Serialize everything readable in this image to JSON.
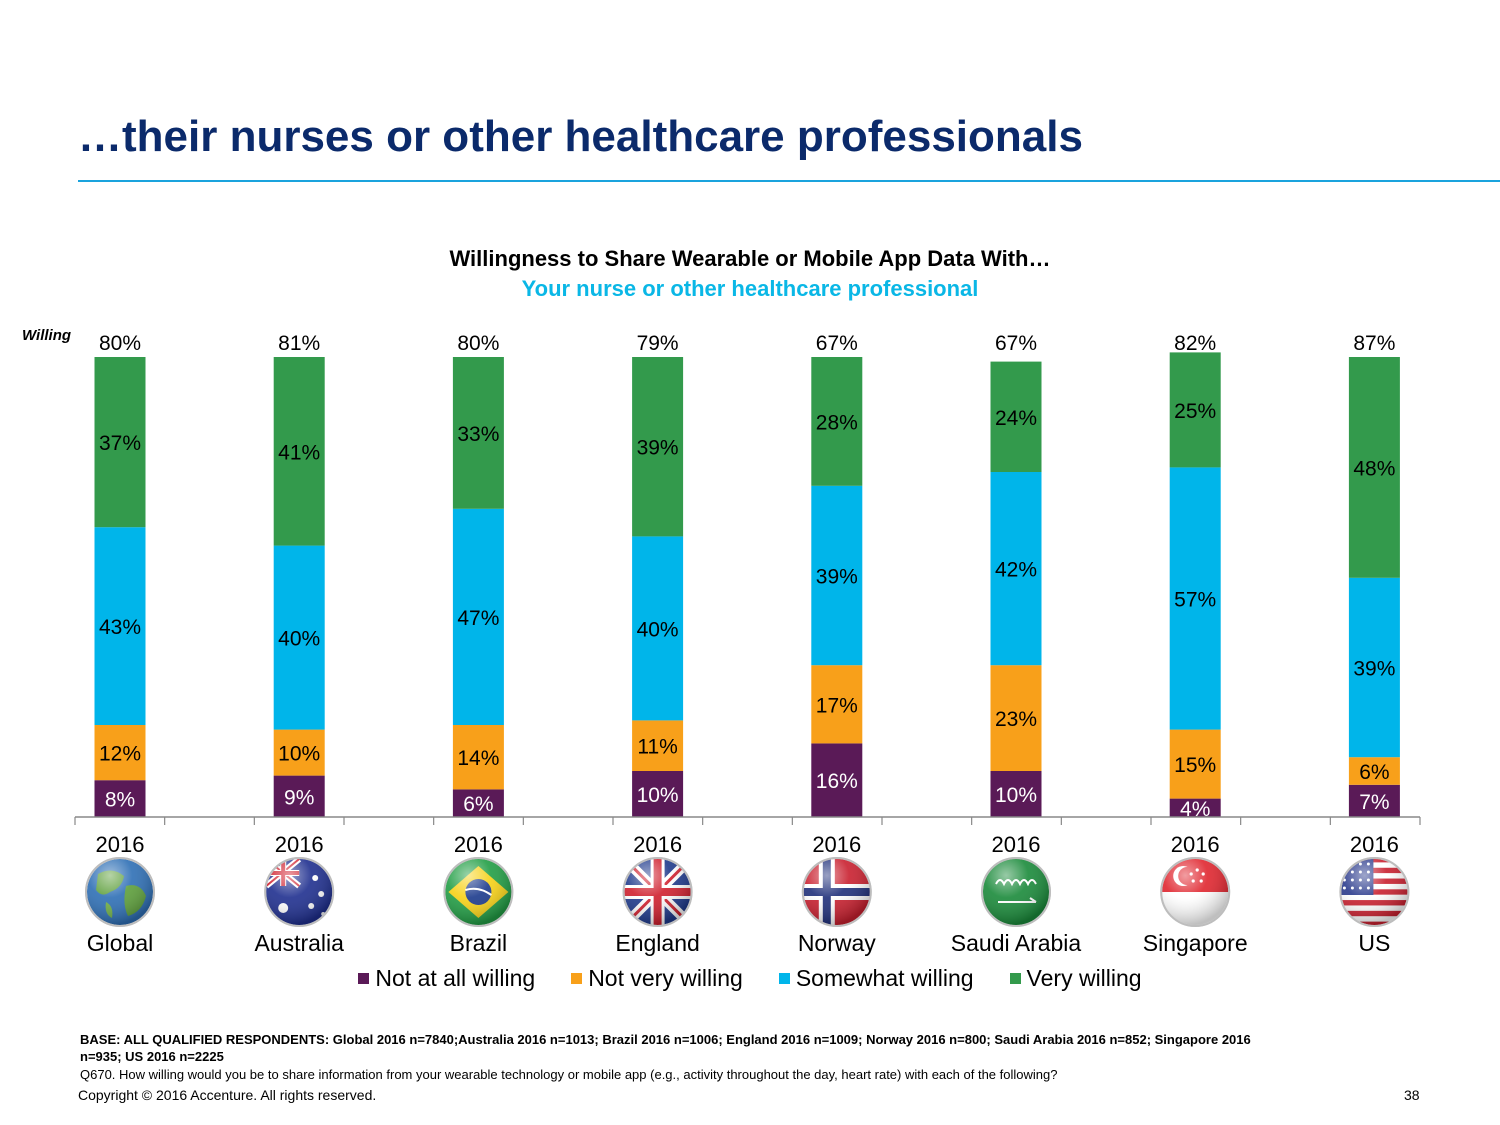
{
  "slide": {
    "title": "…their nurses or other healthcare professionals",
    "page_number": "38",
    "copyright": "Copyright © 2016 Accenture. All rights reserved.",
    "base_note": "BASE: ALL QUALIFIED RESPONDENTS: Global 2016 n=7840;Australia 2016 n=1013; Brazil  2016 n=1006; England  2016 n=1009; Norway  2016 n=800; Saudi Arabia 2016 n=852; Singapore  2016 n=935; US 2016 n=2225",
    "question_note": "Q670.  How willing would you be to share information from your wearable technology or mobile app (e.g., activity throughout the day, heart rate) with each of the following?"
  },
  "chart_data": {
    "type": "bar",
    "stacked": true,
    "title": "Willingness to Share Wearable or Mobile App Data With…",
    "subtitle": "Your nurse or other healthcare professional",
    "ylabel": "Willing",
    "ylim": [
      0,
      100
    ],
    "grid": false,
    "legend_position": "bottom",
    "categories": [
      "Global",
      "Australia",
      "Brazil",
      "England",
      "Norway",
      "Saudi Arabia",
      "Singapore",
      "US"
    ],
    "year_labels": [
      "2016",
      "2016",
      "2016",
      "2016",
      "2016",
      "2016",
      "2016",
      "2016"
    ],
    "willing_totals": [
      "80%",
      "81%",
      "80%",
      "79%",
      "67%",
      "67%",
      "82%",
      "87%"
    ],
    "series": [
      {
        "name": "Not at all willing",
        "color": "#5a1a57",
        "values": [
          8,
          9,
          6,
          10,
          16,
          10,
          4,
          7
        ],
        "labels": [
          "8%",
          "9%",
          "6%",
          "10%",
          "16%",
          "10%",
          "4%",
          "7%"
        ]
      },
      {
        "name": "Not very willing",
        "color": "#f8a01a",
        "values": [
          12,
          10,
          14,
          11,
          17,
          23,
          15,
          6
        ],
        "labels": [
          "12%",
          "10%",
          "14%",
          "11%",
          "17%",
          "23%",
          "15%",
          "6%"
        ]
      },
      {
        "name": "Somewhat willing",
        "color": "#00b5ea",
        "values": [
          43,
          40,
          47,
          40,
          39,
          42,
          57,
          39
        ],
        "labels": [
          "43%",
          "40%",
          "47%",
          "40%",
          "39%",
          "42%",
          "57%",
          "39%"
        ]
      },
      {
        "name": "Very willing",
        "color": "#339a4c",
        "values": [
          37,
          41,
          33,
          39,
          28,
          24,
          25,
          48
        ],
        "labels": [
          "37%",
          "41%",
          "33%",
          "39%",
          "28%",
          "24%",
          "25%",
          "48%"
        ]
      }
    ],
    "icons": [
      "globe-icon",
      "australia-flag-icon",
      "brazil-flag-icon",
      "england-flag-icon",
      "norway-flag-icon",
      "saudi-arabia-flag-icon",
      "singapore-flag-icon",
      "us-flag-icon"
    ]
  }
}
